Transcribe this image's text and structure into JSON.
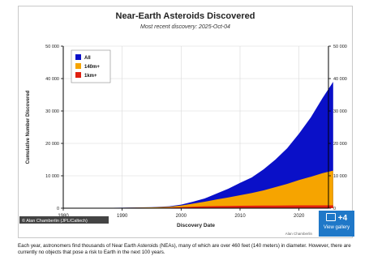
{
  "chart_data": {
    "type": "area",
    "title": "Near-Earth Asteroids Discovered",
    "subtitle": "Most recent discovery: 2025-Oct-04",
    "xlabel": "Discovery Date",
    "ylabel": "Cumulative Number Discovered",
    "xlim": [
      1980,
      2025
    ],
    "ylim": [
      0,
      50000
    ],
    "x_ticks": [
      "1980",
      "1990",
      "2000",
      "2010",
      "2020"
    ],
    "y_ticks_left": [
      "0",
      "10 000",
      "20 000",
      "30 000",
      "40 000",
      "50 000"
    ],
    "y_ticks_right": [
      "0",
      "10 000",
      "20 000",
      "30 000",
      "40 000",
      "50 000"
    ],
    "legend_position": "top-left",
    "grid": true,
    "x": [
      1980,
      1985,
      1990,
      1995,
      1998,
      2000,
      2002,
      2004,
      2006,
      2008,
      2010,
      2012,
      2014,
      2016,
      2018,
      2020,
      2022,
      2024,
      2025.8
    ],
    "series": [
      {
        "name": "All",
        "color": "#0a10c8",
        "values": [
          50,
          80,
          150,
          300,
          600,
          1100,
          2000,
          3000,
          4500,
          6000,
          7800,
          9500,
          12000,
          15000,
          18500,
          23000,
          28000,
          34000,
          39000
        ]
      },
      {
        "name": "140m+",
        "color": "#f6a400",
        "values": [
          40,
          60,
          120,
          250,
          450,
          800,
          1400,
          2000,
          2700,
          3300,
          4000,
          4700,
          5500,
          6500,
          7500,
          8700,
          9700,
          10800,
          11600
        ]
      },
      {
        "name": "1km+",
        "color": "#e02010",
        "values": [
          30,
          40,
          60,
          100,
          180,
          320,
          480,
          580,
          650,
          700,
          740,
          770,
          800,
          820,
          840,
          860,
          870,
          880,
          890
        ]
      }
    ],
    "credit_left": "© Alan Chamberlin (JPL/Caltech)",
    "credit_right": "Alan Chamberlin"
  },
  "badge": {
    "count": "+4",
    "label": "View gallery"
  },
  "caption": "Each year, astronomers find thousands of Near Earth Asteroids (NEAs), many of which are over 460 feet (140 meters) in diameter. However, there are currently no objects that pose a risk to Earth in the next 100 years.",
  "colors": {
    "badge": "#1f78c8",
    "grid": "#d8d8d8"
  }
}
